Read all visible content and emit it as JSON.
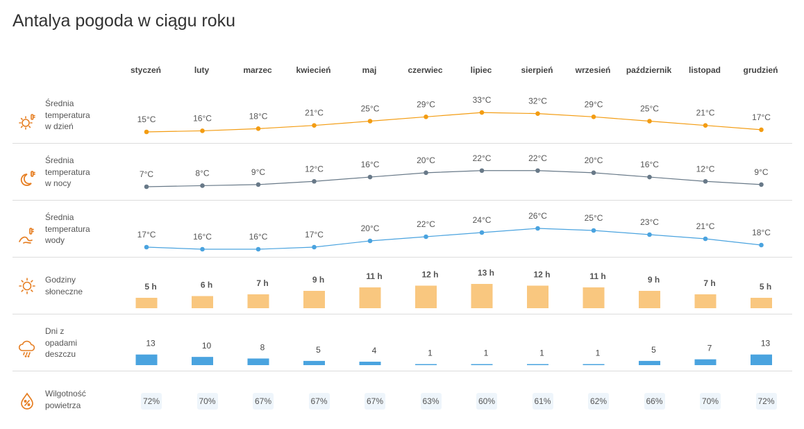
{
  "title": "Antalya pogoda w ciągu roku",
  "months": [
    "styczeń",
    "luty",
    "marzec",
    "kwiecień",
    "maj",
    "czerwiec",
    "lipiec",
    "sierpień",
    "wrzesień",
    "październik",
    "listopad",
    "grudzień"
  ],
  "colors": {
    "day_temp": "#f39c12",
    "night_temp": "#687988",
    "water_temp": "#4aa3df",
    "sun_bar": "#f9c77f",
    "rain_bar": "#4aa3df",
    "icon_orange": "#e67e22",
    "humidity_bg": "#eef5fb"
  },
  "rows": {
    "day_temp": {
      "label": "Średnia\ntemperatura\nw dzień",
      "icon": "thermometer-sun-icon",
      "values": [
        15,
        16,
        18,
        21,
        25,
        29,
        33,
        32,
        29,
        25,
        21,
        17
      ],
      "unit": "°C"
    },
    "night_temp": {
      "label": "Średnia\ntemperatura\nw nocy",
      "icon": "thermometer-moon-icon",
      "values": [
        7,
        8,
        9,
        12,
        16,
        20,
        22,
        22,
        20,
        16,
        12,
        9
      ],
      "unit": "°C"
    },
    "water_temp": {
      "label": "Średnia\ntemperatura\nwody",
      "icon": "thermometer-wave-icon",
      "values": [
        17,
        16,
        16,
        17,
        20,
        22,
        24,
        26,
        25,
        23,
        21,
        18
      ],
      "unit": "°C"
    },
    "sunshine": {
      "label": "Godziny\nsłoneczne",
      "icon": "sun-icon",
      "values": [
        5,
        6,
        7,
        9,
        11,
        12,
        13,
        12,
        11,
        9,
        7,
        5
      ],
      "unit": " h"
    },
    "rain_days": {
      "label": "Dni z\nopadami\ndeszczu",
      "icon": "rain-cloud-icon",
      "values": [
        13,
        10,
        8,
        5,
        4,
        1,
        1,
        1,
        1,
        5,
        7,
        13
      ]
    },
    "humidity": {
      "label": "Wilgotność\npowietrza",
      "icon": "humidity-drop-icon",
      "values": [
        72,
        70,
        67,
        67,
        67,
        63,
        60,
        61,
        62,
        66,
        70,
        72
      ],
      "unit": "%"
    }
  }
}
